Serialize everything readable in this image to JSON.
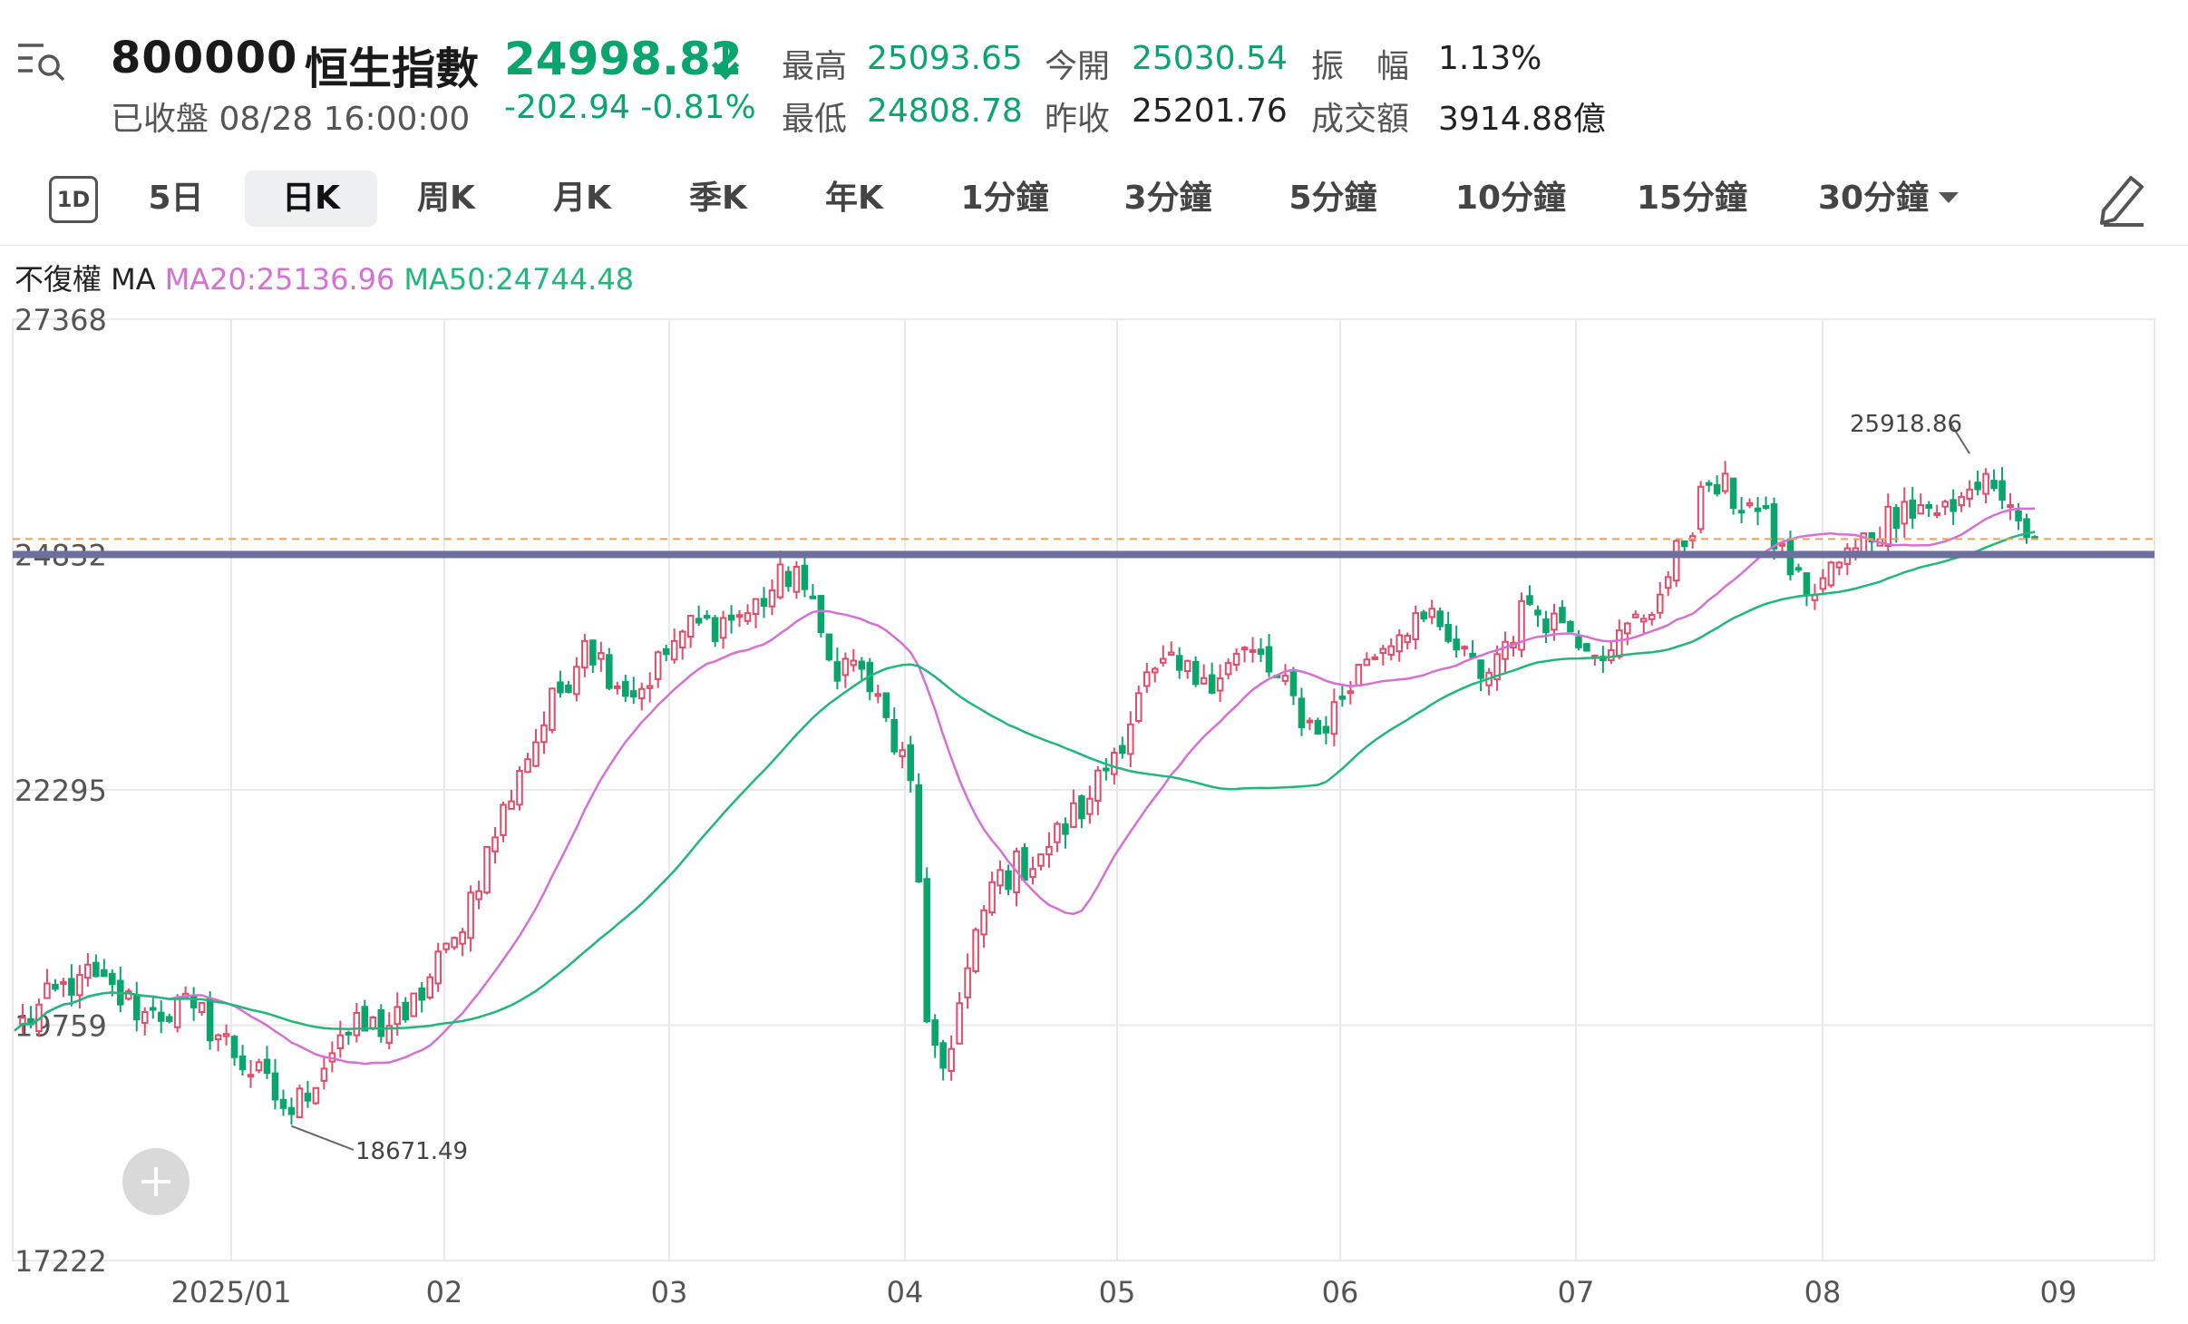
{
  "header": {
    "code": "800000",
    "name": "恒生指數",
    "status": "已收盤 08/28 16:00:00",
    "price": "24998.82",
    "change": "-202.94 -0.81%",
    "stats": [
      {
        "label": "最高",
        "value": "25093.65",
        "color": "green"
      },
      {
        "label": "今開",
        "value": "25030.54",
        "color": "green"
      },
      {
        "label": "振　幅",
        "value": "1.13%",
        "color": "dark"
      },
      {
        "label": "最低",
        "value": "24808.78",
        "color": "green"
      },
      {
        "label": "昨收",
        "value": "25201.76",
        "color": "dark"
      },
      {
        "label": "成交額",
        "value": "3914.88億",
        "color": "dark"
      }
    ]
  },
  "tabs": [
    {
      "label": "1D"
    },
    {
      "label": "5日"
    },
    {
      "label": "日K",
      "active": true
    },
    {
      "label": "周K"
    },
    {
      "label": "月K"
    },
    {
      "label": "季K"
    },
    {
      "label": "年K"
    },
    {
      "label": "1分鐘"
    },
    {
      "label": "3分鐘"
    },
    {
      "label": "5分鐘"
    },
    {
      "label": "10分鐘"
    },
    {
      "label": "15分鐘"
    },
    {
      "label": "30分鐘"
    }
  ],
  "legend": {
    "adj": "不復權 MA",
    "ma20": "MA20:25136.96",
    "ma50": "MA50:24744.48"
  },
  "colors": {
    "up": "#e24b6a",
    "down": "#0aa56d",
    "ma20": "#d670d4",
    "ma50": "#20b77a",
    "grid": "#e9e9e9",
    "hline": "#6d6f9c",
    "dash": "#f0a050"
  },
  "chart_data": {
    "type": "candlestick",
    "yticks": [
      "27368",
      "24832",
      "22295",
      "19759",
      "17222"
    ],
    "ylim": [
      17222,
      27368
    ],
    "xticks": [
      "2025/01",
      "02",
      "03",
      "04",
      "05",
      "06",
      "07",
      "08",
      "09"
    ],
    "annotations": {
      "high": "25918.86",
      "low": "18671.49"
    },
    "horizontal_line": 24832,
    "last_close": 24998.82,
    "anchors": [
      [
        0,
        19700
      ],
      [
        8,
        20300
      ],
      [
        16,
        19900
      ],
      [
        22,
        19950
      ],
      [
        34,
        18800
      ],
      [
        40,
        19650
      ],
      [
        48,
        19820
      ],
      [
        54,
        20700
      ],
      [
        62,
        22500
      ],
      [
        70,
        23900
      ],
      [
        76,
        23300
      ],
      [
        82,
        24000
      ],
      [
        90,
        24200
      ],
      [
        96,
        24700
      ],
      [
        100,
        23700
      ],
      [
        104,
        23600
      ],
      [
        110,
        22400
      ],
      [
        112,
        19800
      ],
      [
        114,
        19300
      ],
      [
        120,
        21300
      ],
      [
        126,
        21600
      ],
      [
        132,
        22200
      ],
      [
        140,
        23600
      ],
      [
        146,
        23500
      ],
      [
        152,
        23800
      ],
      [
        160,
        22900
      ],
      [
        166,
        23700
      ],
      [
        172,
        24200
      ],
      [
        176,
        23900
      ],
      [
        180,
        23500
      ],
      [
        186,
        24300
      ],
      [
        190,
        24100
      ],
      [
        196,
        23800
      ],
      [
        202,
        24400
      ],
      [
        208,
        25600
      ],
      [
        214,
        25300
      ],
      [
        220,
        24400
      ],
      [
        226,
        24900
      ],
      [
        232,
        25400
      ],
      [
        238,
        25300
      ],
      [
        242,
        25700
      ],
      [
        246,
        25200
      ],
      [
        248,
        24998
      ]
    ]
  }
}
